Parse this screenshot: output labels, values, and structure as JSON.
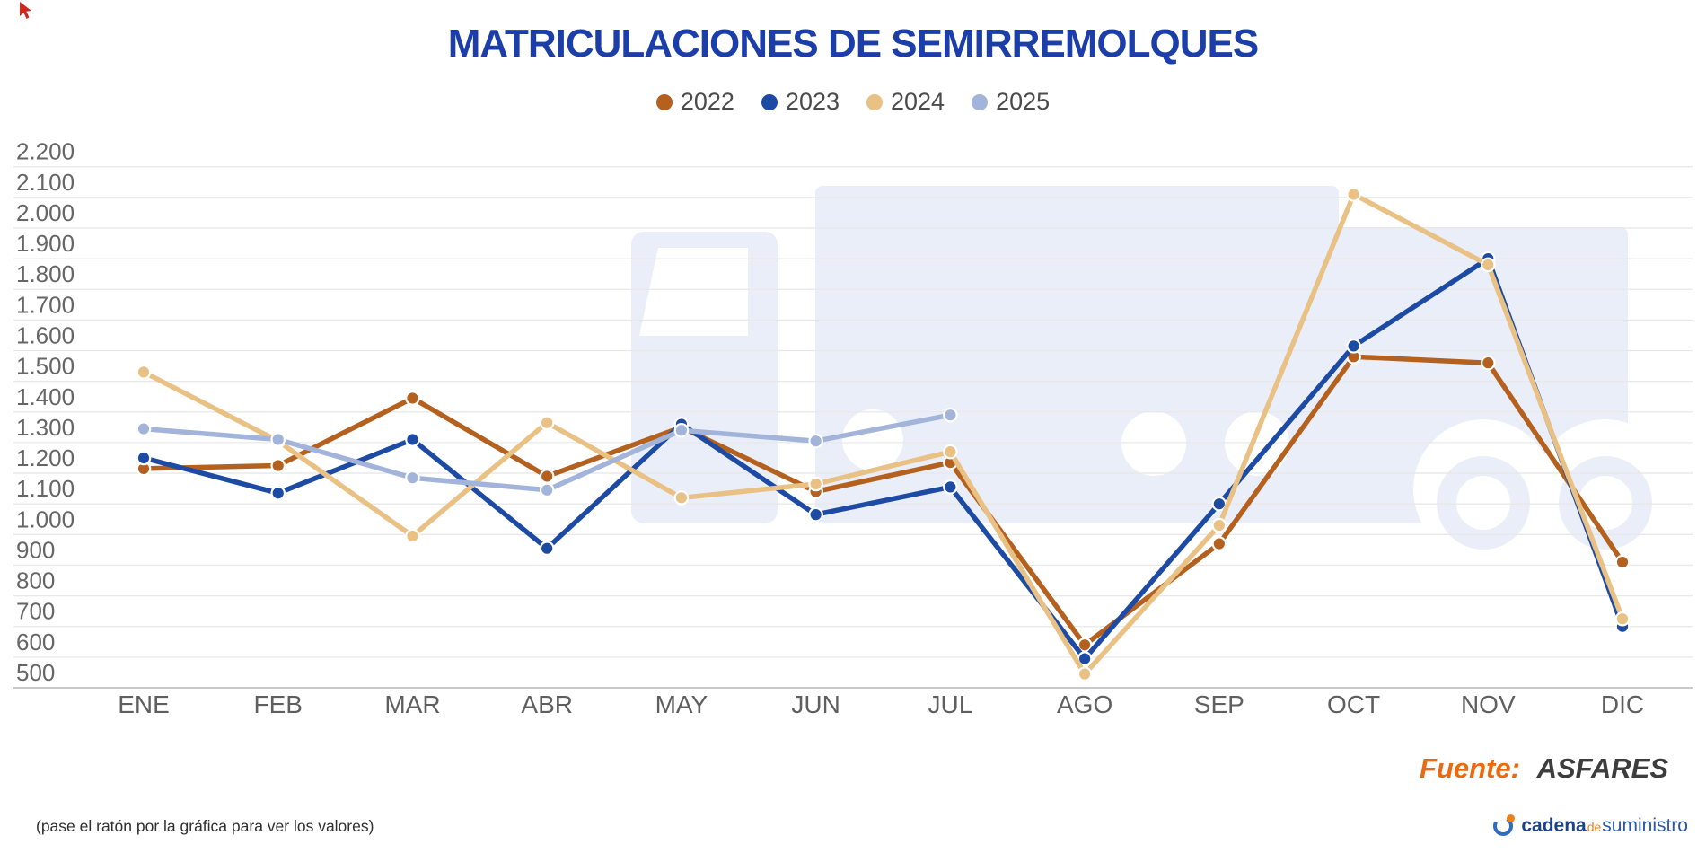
{
  "chart_data": {
    "type": "line",
    "title": "MATRICULACIONES DE SEMIRREMOLQUES",
    "title_color": "#1c3ea8",
    "categories": [
      "ENE",
      "FEB",
      "MAR",
      "ABR",
      "MAY",
      "JUN",
      "JUL",
      "AGO",
      "SEP",
      "OCT",
      "NOV",
      "DIC"
    ],
    "series": [
      {
        "name": "2022",
        "color": "#b4611f",
        "values": [
          1215,
          1225,
          1445,
          1190,
          1350,
          1140,
          1235,
          640,
          970,
          1580,
          1560,
          910
        ]
      },
      {
        "name": "2023",
        "color": "#1d4ba4",
        "values": [
          1250,
          1135,
          1310,
          955,
          1360,
          1065,
          1155,
          595,
          1100,
          1615,
          1900,
          700
        ]
      },
      {
        "name": "2024",
        "color": "#e9c184",
        "values": [
          1530,
          1305,
          995,
          1365,
          1120,
          1165,
          1270,
          545,
          1030,
          2110,
          1880,
          725
        ]
      },
      {
        "name": "2025",
        "color": "#a3b4db",
        "values": [
          1345,
          1310,
          1185,
          1145,
          1340,
          1305,
          1390,
          null,
          null,
          null,
          null,
          null
        ]
      }
    ],
    "ylim": [
      500,
      2200
    ],
    "ytick_step": 100,
    "ytick_labels": [
      "2.200",
      "2.100",
      "2.000",
      "1.900",
      "1.800",
      "1.700",
      "1.600",
      "1.500",
      "1.400",
      "1.300",
      "1.200",
      "1.100",
      "1.000",
      "900",
      "800",
      "700",
      "600",
      "500"
    ],
    "grid": true,
    "legend_position": "top"
  },
  "footer": {
    "source_label": "Fuente:",
    "source_value": "ASFARES",
    "hint": "(pase el ratón por la gráfica para ver los valores)",
    "logo": {
      "part1": "cadena",
      "part2": "de",
      "part3": "suministro"
    }
  }
}
